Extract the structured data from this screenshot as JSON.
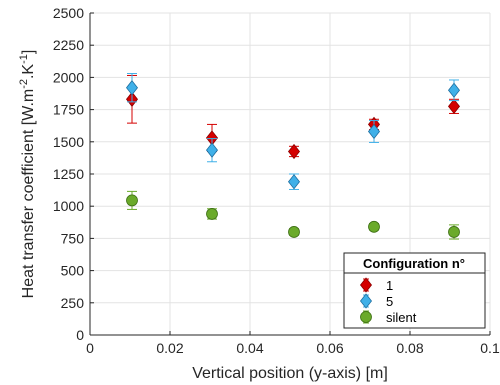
{
  "chart_data": {
    "type": "scatter",
    "title": "",
    "xlabel": "Vertical position (y-axis) [m]",
    "ylabel": "Heat transfer coefficient [W.m-2.K-1]",
    "ylabel_parts": {
      "base": "Heat transfer coefficient [W.m",
      "exp1": "-2",
      "mid": ".K",
      "exp2": "-1",
      "end": "]"
    },
    "xlim": [
      0,
      0.1
    ],
    "ylim": [
      0,
      2500
    ],
    "xticks": [
      0,
      0.02,
      0.04,
      0.06,
      0.08,
      0.1
    ],
    "xtick_labels": [
      "0",
      "0.02",
      "0.04",
      "0.06",
      "0.08",
      "0.1"
    ],
    "yticks": [
      0,
      250,
      500,
      750,
      1000,
      1250,
      1500,
      1750,
      2000,
      2250,
      2500
    ],
    "ytick_labels": [
      "0",
      "250",
      "500",
      "750",
      "1000",
      "1250",
      "1500",
      "1750",
      "2000",
      "2250",
      "2500"
    ],
    "grid": true,
    "legend": {
      "title": "Configuration n°",
      "placement": "bottom-right"
    },
    "series": [
      {
        "name": "1",
        "marker": "diamond",
        "color": "#d40000",
        "edge": "#8b0000",
        "x": [
          0.0105,
          0.0305,
          0.051,
          0.071,
          0.091
        ],
        "y": [
          1830,
          1530,
          1425,
          1635,
          1775
        ],
        "err": [
          185,
          105,
          40,
          40,
          55
        ]
      },
      {
        "name": "5",
        "marker": "diamond",
        "color": "#3fb0e8",
        "edge": "#1f6fa0",
        "x": [
          0.0105,
          0.0305,
          0.051,
          0.071,
          0.091
        ],
        "y": [
          1920,
          1435,
          1190,
          1580,
          1900
        ],
        "err": [
          110,
          90,
          60,
          85,
          80
        ]
      },
      {
        "name": "silent",
        "marker": "circle",
        "color": "#6aaa2a",
        "edge": "#3d6e14",
        "x": [
          0.0105,
          0.0305,
          0.051,
          0.071,
          0.091
        ],
        "y": [
          1045,
          940,
          800,
          840,
          800
        ],
        "err": [
          70,
          40,
          25,
          25,
          55
        ]
      }
    ]
  }
}
